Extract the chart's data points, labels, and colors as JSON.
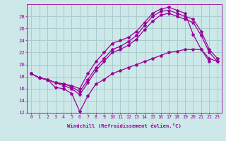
{
  "xlabel": "Windchill (Refroidissement éolien,°C)",
  "bg_color": "#cce8e8",
  "line_color": "#990099",
  "grid_color": "#aacccc",
  "xlim": [
    -0.5,
    23.5
  ],
  "ylim": [
    12,
    30
  ],
  "yticks": [
    12,
    14,
    16,
    18,
    20,
    22,
    24,
    26,
    28
  ],
  "xticks": [
    0,
    1,
    2,
    3,
    4,
    5,
    6,
    7,
    8,
    9,
    10,
    11,
    12,
    13,
    14,
    15,
    16,
    17,
    18,
    19,
    20,
    21,
    22,
    23
  ],
  "lines": [
    {
      "x": [
        0,
        1,
        2,
        3,
        4,
        5,
        6,
        7,
        8,
        9,
        10,
        11,
        12,
        13,
        14,
        15,
        16,
        17,
        18,
        19,
        20,
        21,
        22,
        23
      ],
      "y": [
        18.5,
        17.8,
        17.5,
        17.0,
        16.8,
        16.5,
        16.0,
        18.5,
        20.5,
        22.0,
        23.5,
        24.0,
        24.5,
        25.5,
        27.0,
        28.5,
        29.2,
        29.5,
        29.0,
        28.5,
        25.0,
        22.5,
        21.0,
        20.5
      ]
    },
    {
      "x": [
        0,
        1,
        2,
        3,
        4,
        5,
        6,
        7,
        8,
        9,
        10,
        11,
        12,
        13,
        14,
        15,
        16,
        17,
        18,
        19,
        20,
        21,
        22,
        23
      ],
      "y": [
        18.5,
        17.8,
        17.5,
        17.0,
        16.8,
        16.3,
        15.5,
        17.5,
        19.5,
        21.0,
        22.5,
        23.0,
        23.8,
        24.8,
        26.5,
        28.0,
        28.8,
        29.0,
        28.5,
        28.0,
        27.5,
        25.5,
        22.5,
        21.0
      ]
    },
    {
      "x": [
        0,
        1,
        2,
        3,
        4,
        5,
        6,
        7,
        8,
        9,
        10,
        11,
        12,
        13,
        14,
        15,
        16,
        17,
        18,
        19,
        20,
        21,
        22,
        23
      ],
      "y": [
        18.5,
        17.8,
        17.5,
        17.0,
        16.5,
        16.0,
        15.0,
        17.0,
        19.0,
        20.5,
        22.0,
        22.5,
        23.2,
        24.2,
        25.8,
        27.2,
        28.2,
        28.5,
        28.0,
        27.5,
        27.0,
        24.8,
        22.0,
        20.5
      ]
    },
    {
      "x": [
        0,
        1,
        2,
        3,
        4,
        5,
        6,
        7,
        8,
        9,
        10,
        11,
        12,
        13,
        14,
        15,
        16,
        17,
        18,
        19,
        20,
        21,
        22,
        23
      ],
      "y": [
        18.5,
        17.8,
        17.5,
        16.2,
        16.0,
        15.2,
        12.2,
        14.8,
        16.8,
        17.5,
        18.5,
        19.0,
        19.5,
        20.0,
        20.5,
        21.0,
        21.5,
        22.0,
        22.2,
        22.5,
        22.5,
        22.5,
        20.5,
        null
      ]
    }
  ]
}
